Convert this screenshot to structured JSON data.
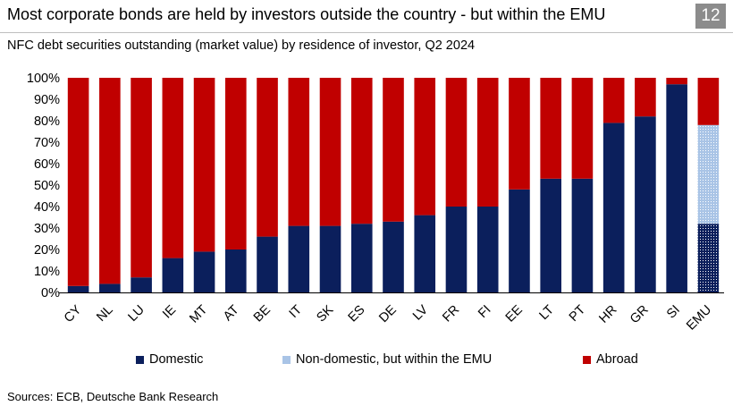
{
  "header": {
    "title": "Most corporate bonds are held by investors outside the country - but within the EMU",
    "badge": "12",
    "subtitle": "NFC debt securities outstanding (market value) by residence of investor, Q2 2024"
  },
  "footer": {
    "source": "Sources: ECB, Deutsche Bank Research"
  },
  "chart_data": {
    "type": "bar",
    "stacked": true,
    "categories": [
      "CY",
      "NL",
      "LU",
      "IE",
      "MT",
      "AT",
      "BE",
      "IT",
      "SK",
      "ES",
      "DE",
      "LV",
      "FR",
      "FI",
      "EE",
      "LT",
      "PT",
      "HR",
      "GR",
      "SI",
      "EMU"
    ],
    "series": [
      {
        "name": "Domestic",
        "color": "#0b1f5c",
        "values": [
          3,
          4,
          7,
          16,
          19,
          20,
          26,
          31,
          31,
          32,
          33,
          36,
          40,
          40,
          48,
          53,
          53,
          79,
          82,
          97,
          32
        ]
      },
      {
        "name": "Non-domestic, but within the EMU",
        "color": "#a9c4e6",
        "values": [
          0,
          0,
          0,
          0,
          0,
          0,
          0,
          0,
          0,
          0,
          0,
          0,
          0,
          0,
          0,
          0,
          0,
          0,
          0,
          0,
          46
        ]
      },
      {
        "name": "Abroad",
        "color": "#c00000",
        "values": [
          97,
          96,
          93,
          84,
          81,
          80,
          74,
          69,
          69,
          68,
          67,
          64,
          60,
          60,
          52,
          47,
          47,
          21,
          18,
          3,
          22
        ]
      }
    ],
    "yticks": [
      "0%",
      "10%",
      "20%",
      "30%",
      "40%",
      "50%",
      "60%",
      "70%",
      "80%",
      "90%",
      "100%"
    ],
    "ylim": [
      0,
      100
    ],
    "legend": "bottom",
    "grid": false
  }
}
